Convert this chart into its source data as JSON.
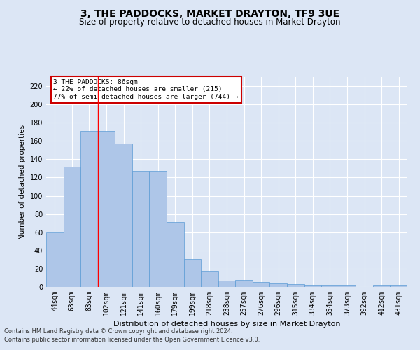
{
  "title": "3, THE PADDOCKS, MARKET DRAYTON, TF9 3UE",
  "subtitle": "Size of property relative to detached houses in Market Drayton",
  "xlabel": "Distribution of detached houses by size in Market Drayton",
  "ylabel": "Number of detached properties",
  "categories": [
    "44sqm",
    "63sqm",
    "83sqm",
    "102sqm",
    "121sqm",
    "141sqm",
    "160sqm",
    "179sqm",
    "199sqm",
    "218sqm",
    "238sqm",
    "257sqm",
    "276sqm",
    "296sqm",
    "315sqm",
    "334sqm",
    "354sqm",
    "373sqm",
    "392sqm",
    "412sqm",
    "431sqm"
  ],
  "values": [
    60,
    132,
    171,
    171,
    157,
    127,
    127,
    71,
    31,
    18,
    7,
    8,
    5,
    4,
    3,
    2,
    2,
    2,
    0,
    2,
    2
  ],
  "bar_color": "#aec6e8",
  "bar_edge_color": "#5b9bd5",
  "ylim": [
    0,
    230
  ],
  "yticks": [
    0,
    20,
    40,
    60,
    80,
    100,
    120,
    140,
    160,
    180,
    200,
    220
  ],
  "annotation_text": "3 THE PADDOCKS: 86sqm\n← 22% of detached houses are smaller (215)\n77% of semi-detached houses are larger (744) →",
  "annotation_box_color": "#ffffff",
  "annotation_box_edge": "#cc0000",
  "footer_line1": "Contains HM Land Registry data © Crown copyright and database right 2024.",
  "footer_line2": "Contains public sector information licensed under the Open Government Licence v3.0.",
  "background_color": "#dce6f5",
  "plot_bg_color": "#dce6f5",
  "grid_color": "#ffffff",
  "title_fontsize": 10,
  "subtitle_fontsize": 8.5,
  "tick_fontsize": 7,
  "ylabel_fontsize": 7.5,
  "xlabel_fontsize": 8,
  "footer_fontsize": 6,
  "red_line_x": 2.5
}
